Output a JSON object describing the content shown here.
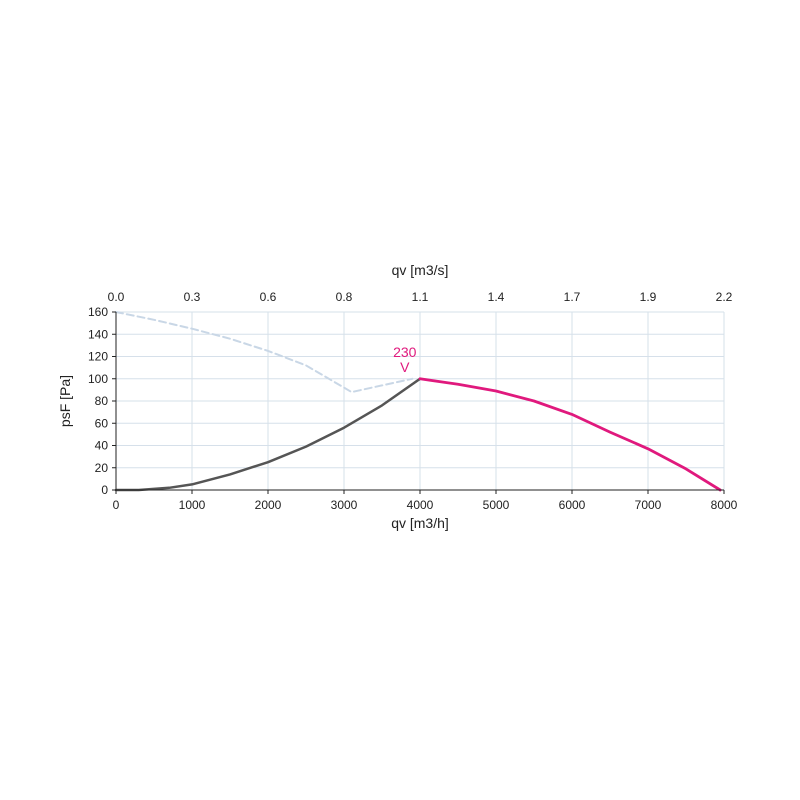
{
  "chart_data": {
    "type": "line",
    "xlabel": "qv [m3/h]",
    "x2label": "qv [m3/s]",
    "ylabel": "psF [Pa]",
    "xlim": [
      0,
      8000
    ],
    "ylim": [
      0,
      160
    ],
    "grid": true,
    "x_ticks": [
      "0",
      "1000",
      "2000",
      "3000",
      "4000",
      "5000",
      "6000",
      "7000",
      "8000"
    ],
    "x2_ticks": [
      "0.0",
      "0.3",
      "0.6",
      "0.8",
      "1.1",
      "1.4",
      "1.7",
      "1.9",
      "2.2"
    ],
    "y_ticks": [
      "0",
      "20",
      "40",
      "60",
      "80",
      "100",
      "120",
      "140",
      "160"
    ],
    "annotation": {
      "line1": "230",
      "line2": "V",
      "x": 3800,
      "y": 100
    },
    "colors": {
      "gray_curve": "#555555",
      "magenta_curve": "#e0197d",
      "dashed_curve": "#c9d7e6",
      "grid": "#d6e0ea",
      "axis": "#222222"
    },
    "series": [
      {
        "style": "dashed",
        "x": [
          0,
          500,
          1000,
          1500,
          2000,
          2500,
          3000,
          3100,
          3500,
          3900
        ],
        "y": [
          160,
          153,
          145,
          136,
          125,
          112,
          92,
          88,
          94,
          100
        ]
      },
      {
        "style": "gray",
        "x": [
          0,
          300,
          700,
          1000,
          1500,
          2000,
          2500,
          3000,
          3500,
          4000
        ],
        "y": [
          0,
          0,
          2,
          5,
          14,
          25,
          39,
          56,
          76,
          100
        ]
      },
      {
        "style": "magenta",
        "x": [
          4000,
          4500,
          5000,
          5500,
          6000,
          6500,
          7000,
          7500,
          7950
        ],
        "y": [
          100,
          95,
          89,
          80,
          68,
          52,
          37,
          19,
          0
        ]
      }
    ]
  }
}
